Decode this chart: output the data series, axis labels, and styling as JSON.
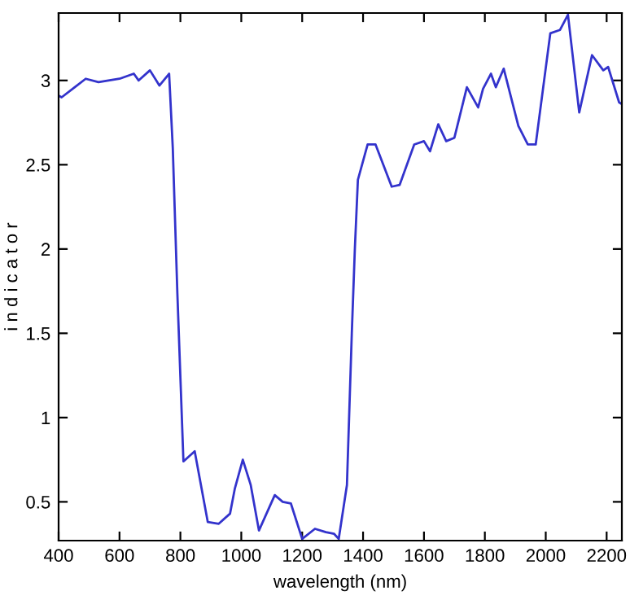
{
  "chart_data": {
    "type": "line",
    "xlabel": "wavelength (nm)",
    "ylabel": "i n d i c a t o r",
    "x": [
      400,
      410,
      453,
      489,
      531,
      600,
      647,
      663,
      700,
      731,
      763,
      775,
      790,
      810,
      847,
      890,
      926,
      963,
      979,
      1005,
      1031,
      1058,
      1110,
      1136,
      1163,
      1200,
      1242,
      1278,
      1305,
      1320,
      1347,
      1363,
      1373,
      1383,
      1415,
      1441,
      1494,
      1520,
      1568,
      1600,
      1620,
      1647,
      1673,
      1700,
      1741,
      1778,
      1794,
      1820,
      1836,
      1862,
      1910,
      1941,
      1967,
      2015,
      2047,
      2073,
      2110,
      2152,
      2189,
      2205,
      2241,
      2250
    ],
    "series": [
      {
        "color": "#3333cc",
        "values": [
          2.91,
          2.9,
          2.96,
          3.01,
          2.99,
          3.01,
          3.04,
          3.0,
          3.06,
          2.97,
          3.04,
          2.6,
          1.74,
          0.74,
          0.8,
          0.38,
          0.37,
          0.43,
          0.58,
          0.75,
          0.6,
          0.33,
          0.54,
          0.5,
          0.49,
          0.28,
          0.34,
          0.32,
          0.31,
          0.28,
          0.6,
          1.5,
          2.0,
          2.41,
          2.62,
          2.62,
          2.37,
          2.38,
          2.62,
          2.64,
          2.58,
          2.74,
          2.64,
          2.66,
          2.96,
          2.84,
          2.95,
          3.04,
          2.96,
          3.07,
          2.73,
          2.62,
          2.62,
          3.28,
          3.3,
          3.39,
          2.81,
          3.15,
          3.06,
          3.08,
          2.87,
          2.86
        ]
      }
    ],
    "xlim": [
      400,
      2250
    ],
    "ylim": [
      0.27,
      3.4
    ],
    "xticks": [
      400,
      600,
      800,
      1000,
      1200,
      1400,
      1600,
      1800,
      2000,
      2200
    ],
    "yticks": [
      0.5,
      1,
      1.5,
      2,
      2.5,
      3
    ],
    "grid": false,
    "legend": false,
    "marker": "none",
    "line_style": "solid"
  }
}
